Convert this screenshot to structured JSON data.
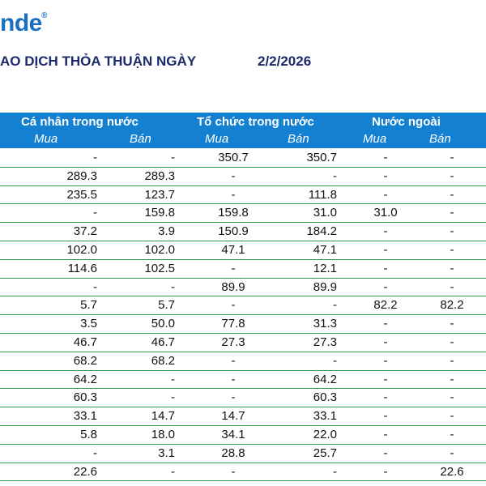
{
  "brand": {
    "logo_text": "nde",
    "reg_mark": "®"
  },
  "title": "AO DỊCH THỎA THUẬN NGÀY",
  "date": "2/2/2026",
  "groups": [
    "Cá nhân trong nước",
    "Tổ chức trong nước",
    "Nước ngoài"
  ],
  "subheaders": [
    "Mua",
    "Bán",
    "Mua",
    "Bán",
    "Mua",
    "Bán"
  ],
  "rows": [
    [
      "-",
      "-",
      "350.7",
      "350.7",
      "-",
      "-"
    ],
    [
      "289.3",
      "289.3",
      "-",
      "-",
      "-",
      "-"
    ],
    [
      "235.5",
      "123.7",
      "-",
      "111.8",
      "-",
      "-"
    ],
    [
      "-",
      "159.8",
      "159.8",
      "31.0",
      "31.0",
      "-"
    ],
    [
      "37.2",
      "3.9",
      "150.9",
      "184.2",
      "-",
      "-"
    ],
    [
      "102.0",
      "102.0",
      "47.1",
      "47.1",
      "-",
      "-"
    ],
    [
      "114.6",
      "102.5",
      "-",
      "12.1",
      "-",
      "-"
    ],
    [
      "-",
      "-",
      "89.9",
      "89.9",
      "-",
      "-"
    ],
    [
      "5.7",
      "5.7",
      "-",
      "-",
      "82.2",
      "82.2"
    ],
    [
      "3.5",
      "50.0",
      "77.8",
      "31.3",
      "-",
      "-"
    ],
    [
      "46.7",
      "46.7",
      "27.3",
      "27.3",
      "-",
      "-"
    ],
    [
      "68.2",
      "68.2",
      "-",
      "-",
      "-",
      "-"
    ],
    [
      "64.2",
      "-",
      "-",
      "64.2",
      "-",
      "-"
    ],
    [
      "60.3",
      "-",
      "-",
      "60.3",
      "-",
      "-"
    ],
    [
      "33.1",
      "14.7",
      "14.7",
      "33.1",
      "-",
      "-"
    ],
    [
      "5.8",
      "18.0",
      "34.1",
      "22.0",
      "-",
      "-"
    ],
    [
      "-",
      "3.1",
      "28.8",
      "25.7",
      "-",
      "-"
    ],
    [
      "22.6",
      "-",
      "-",
      "-",
      "-",
      "22.6"
    ]
  ]
}
